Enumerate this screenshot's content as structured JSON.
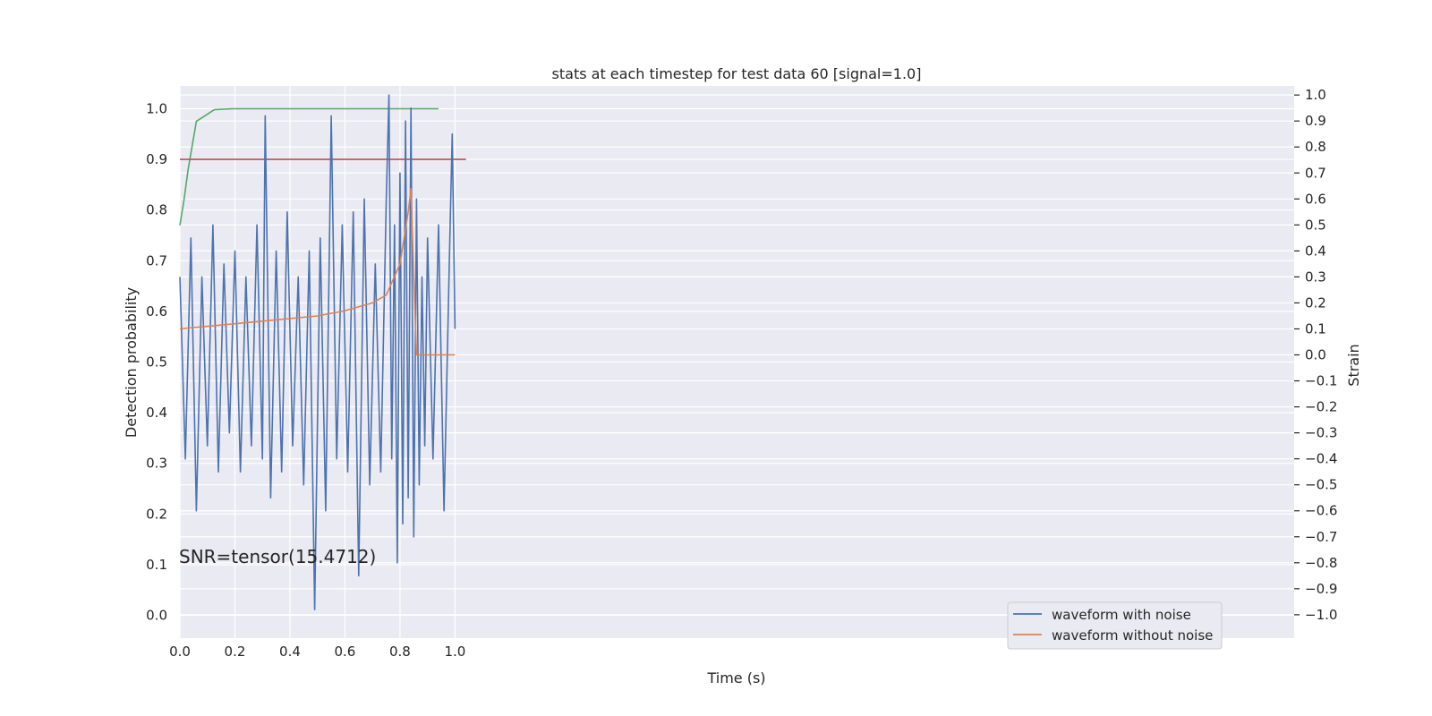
{
  "chart_data": {
    "type": "line",
    "title": "stats at each timestep for test data 60 [signal=1.0]",
    "xlabel": "Time (s)",
    "ylabel": "Detection probability",
    "y2label": "Strain",
    "annotation": "SNR=tensor(15.4712)",
    "grid": true,
    "xlim": [
      0.0,
      4.05
    ],
    "ylim": [
      -0.045,
      1.045
    ],
    "y2lim": [
      -1.09,
      1.035
    ],
    "xticks": [
      "0.0",
      "0.2",
      "0.4",
      "0.6",
      "0.8",
      "1.0"
    ],
    "yticks": [
      "0.0",
      "0.1",
      "0.2",
      "0.3",
      "0.4",
      "0.5",
      "0.6",
      "0.7",
      "0.8",
      "0.9",
      "1.0"
    ],
    "y2ticks": [
      "1.0",
      "0.9",
      "0.8",
      "0.7",
      "0.6",
      "0.5",
      "0.4",
      "0.3",
      "0.2",
      "0.1",
      "0.0",
      "−0.1",
      "−0.2",
      "−0.3",
      "−0.4",
      "−0.5",
      "−0.6",
      "−0.7",
      "−0.8",
      "−0.9",
      "−1.0"
    ],
    "legend": {
      "position": "lower-right",
      "entries": [
        "waveform with noise",
        "waveform without noise"
      ]
    },
    "series": [
      {
        "axis": "left",
        "color": "#55a868",
        "x": [
          0.0,
          0.015,
          0.03,
          0.06,
          0.125,
          0.19,
          0.94
        ],
        "y": [
          0.77,
          0.82,
          0.88,
          0.975,
          0.998,
          1.0,
          1.0
        ]
      },
      {
        "axis": "left",
        "color": "#c44e52",
        "x": [
          0.0,
          1.04
        ],
        "y": [
          0.9,
          0.9
        ]
      },
      {
        "name": "waveform with noise",
        "axis": "right",
        "color": "#4c72b0",
        "x": [
          0.0,
          0.02,
          0.04,
          0.06,
          0.08,
          0.1,
          0.12,
          0.14,
          0.16,
          0.18,
          0.2,
          0.22,
          0.24,
          0.26,
          0.28,
          0.3,
          0.31,
          0.33,
          0.35,
          0.37,
          0.39,
          0.41,
          0.43,
          0.45,
          0.47,
          0.49,
          0.51,
          0.53,
          0.55,
          0.57,
          0.59,
          0.61,
          0.63,
          0.65,
          0.67,
          0.69,
          0.71,
          0.73,
          0.75,
          0.76,
          0.77,
          0.78,
          0.79,
          0.8,
          0.81,
          0.82,
          0.83,
          0.84,
          0.85,
          0.86,
          0.87,
          0.88,
          0.89,
          0.9,
          0.92,
          0.94,
          0.96,
          0.98,
          0.99,
          1.0
        ],
        "y": [
          0.3,
          -0.4,
          0.45,
          -0.6,
          0.3,
          -0.35,
          0.5,
          -0.45,
          0.35,
          -0.3,
          0.4,
          -0.45,
          0.3,
          -0.35,
          0.5,
          -0.4,
          0.92,
          -0.55,
          0.4,
          -0.45,
          0.55,
          -0.35,
          0.3,
          -0.5,
          0.4,
          -0.98,
          0.45,
          -0.6,
          0.92,
          -0.4,
          0.5,
          -0.45,
          0.55,
          -0.85,
          0.6,
          -0.5,
          0.35,
          -0.45,
          0.6,
          1.0,
          -0.4,
          0.5,
          -0.8,
          0.7,
          -0.65,
          0.9,
          -0.55,
          0.95,
          -0.7,
          0.6,
          -0.5,
          0.3,
          -0.35,
          0.45,
          -0.4,
          0.5,
          -0.6,
          0.4,
          0.85,
          0.1
        ]
      },
      {
        "name": "waveform without noise",
        "axis": "right",
        "color": "#dd8452",
        "x": [
          0.0,
          0.1,
          0.2,
          0.3,
          0.4,
          0.5,
          0.6,
          0.7,
          0.75,
          0.8,
          0.83,
          0.84,
          0.85,
          0.86,
          0.87,
          1.0
        ],
        "y": [
          0.1,
          0.11,
          0.12,
          0.13,
          0.14,
          0.15,
          0.17,
          0.2,
          0.23,
          0.35,
          0.55,
          0.64,
          0.3,
          0.0,
          0.0,
          0.0
        ]
      }
    ]
  }
}
